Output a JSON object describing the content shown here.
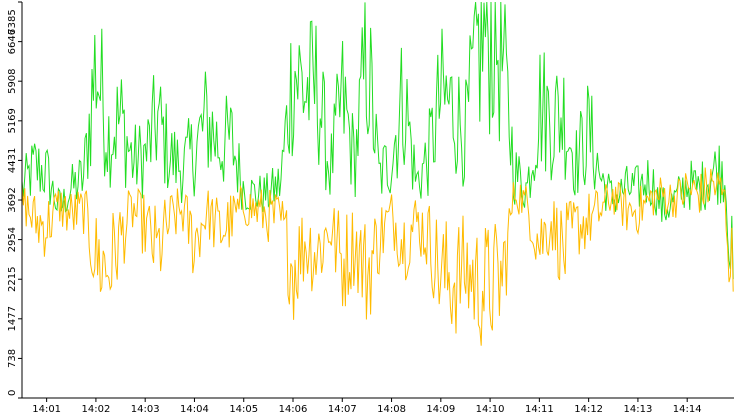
{
  "chart_data": {
    "type": "line",
    "title": "",
    "xlabel": "",
    "ylabel": "",
    "x_ticks": [
      "14:01",
      "14:02",
      "14:03",
      "14:04",
      "14:05",
      "14:06",
      "14:07",
      "14:08",
      "14:09",
      "14:10",
      "14:11",
      "14:12",
      "14:13",
      "14:14"
    ],
    "x_range": [
      "14:00:30",
      "14:14:57"
    ],
    "y_ticks": [
      0,
      738,
      1477,
      2215,
      2954,
      3692,
      4431,
      5169,
      5908,
      6646,
      7385
    ],
    "ylim": [
      0,
      7385
    ],
    "grid": false,
    "legend": "none",
    "series": [
      {
        "color": "#22dd22",
        "time": [
          "14:00:30",
          "14:00:45",
          "14:01:00",
          "14:01:15",
          "14:01:30",
          "14:01:45",
          "14:02:00",
          "14:02:15",
          "14:02:30",
          "14:02:45",
          "14:03:00",
          "14:03:15",
          "14:03:30",
          "14:03:45",
          "14:04:00",
          "14:04:15",
          "14:04:30",
          "14:04:45",
          "14:05:00",
          "14:05:15",
          "14:05:30",
          "14:05:45",
          "14:06:00",
          "14:06:15",
          "14:06:30",
          "14:06:45",
          "14:07:00",
          "14:07:15",
          "14:07:30",
          "14:07:45",
          "14:08:00",
          "14:08:15",
          "14:08:30",
          "14:08:45",
          "14:09:00",
          "14:09:15",
          "14:09:30",
          "14:09:45",
          "14:10:00",
          "14:10:15",
          "14:10:30",
          "14:10:45",
          "14:11:00",
          "14:11:15",
          "14:11:30",
          "14:11:45",
          "14:12:00",
          "14:12:15",
          "14:12:30",
          "14:12:45",
          "14:13:00",
          "14:13:15",
          "14:13:30",
          "14:13:45",
          "14:14:00",
          "14:14:15",
          "14:14:30",
          "14:14:45",
          "14:14:57"
        ],
        "values": [
          3900,
          4300,
          4200,
          3500,
          3900,
          4100,
          6300,
          4900,
          5200,
          4400,
          4500,
          5200,
          4500,
          4300,
          4600,
          5200,
          4700,
          4800,
          3900,
          3800,
          3800,
          4000,
          6200,
          5700,
          5800,
          4200,
          5600,
          4400,
          6400,
          4100,
          4500,
          5700,
          4000,
          4500,
          5600,
          5400,
          4900,
          6500,
          6900,
          6300,
          4200,
          3900,
          5500,
          5200,
          5300,
          4400,
          5000,
          4100,
          3700,
          3900,
          3900,
          4100,
          3500,
          3700,
          4000,
          3900,
          4200,
          4300,
          1800
        ]
      },
      {
        "color": "#ffbb00",
        "time": [
          "14:00:30",
          "14:00:45",
          "14:01:00",
          "14:01:15",
          "14:01:30",
          "14:01:45",
          "14:02:00",
          "14:02:15",
          "14:02:30",
          "14:02:45",
          "14:03:00",
          "14:03:15",
          "14:03:30",
          "14:03:45",
          "14:04:00",
          "14:04:15",
          "14:04:30",
          "14:04:45",
          "14:05:00",
          "14:05:15",
          "14:05:30",
          "14:05:45",
          "14:06:00",
          "14:06:15",
          "14:06:30",
          "14:06:45",
          "14:07:00",
          "14:07:15",
          "14:07:30",
          "14:07:45",
          "14:08:00",
          "14:08:15",
          "14:08:30",
          "14:08:45",
          "14:09:00",
          "14:09:15",
          "14:09:30",
          "14:09:45",
          "14:10:00",
          "14:10:15",
          "14:10:30",
          "14:10:45",
          "14:11:00",
          "14:11:15",
          "14:11:30",
          "14:11:45",
          "14:12:00",
          "14:12:15",
          "14:12:30",
          "14:12:45",
          "14:13:00",
          "14:13:15",
          "14:13:30",
          "14:13:45",
          "14:14:00",
          "14:14:15",
          "14:14:30",
          "14:14:45",
          "14:14:57"
        ],
        "values": [
          3700,
          3300,
          3200,
          3600,
          3400,
          3500,
          2600,
          2400,
          3000,
          3500,
          3200,
          2700,
          3300,
          3500,
          2900,
          3500,
          3100,
          3300,
          3600,
          3500,
          3400,
          3300,
          2400,
          2900,
          2700,
          3200,
          2500,
          2900,
          2300,
          3000,
          3400,
          2900,
          3300,
          3000,
          2300,
          2200,
          2400,
          2100,
          2100,
          2200,
          3900,
          3600,
          2900,
          3300,
          2700,
          3200,
          3300,
          3500,
          3800,
          3500,
          3500,
          3700,
          3800,
          3700,
          3900,
          3800,
          4000,
          3800,
          1800
        ]
      }
    ]
  }
}
